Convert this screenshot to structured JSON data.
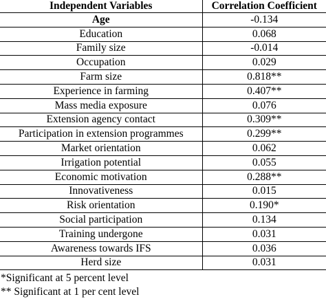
{
  "table": {
    "headers": [
      "Independent Variables",
      "Correlation Coefficient"
    ],
    "rows": [
      {
        "variable": "Age",
        "coefficient": "-0.134",
        "bold": true
      },
      {
        "variable": "Education",
        "coefficient": "0.068"
      },
      {
        "variable": "Family size",
        "coefficient": "-0.014"
      },
      {
        "variable": "Occupation",
        "coefficient": "0.029"
      },
      {
        "variable": "Farm size",
        "coefficient": "0.818**"
      },
      {
        "variable": "Experience in farming",
        "coefficient": "0.407**"
      },
      {
        "variable": "Mass media exposure",
        "coefficient": "0.076"
      },
      {
        "variable": "Extension agency contact",
        "coefficient": "0.309**"
      },
      {
        "variable": "Participation in extension programmes",
        "coefficient": "0.299**"
      },
      {
        "variable": "Market orientation",
        "coefficient": "0.062"
      },
      {
        "variable": "Irrigation potential",
        "coefficient": "0.055"
      },
      {
        "variable": "Economic motivation",
        "coefficient": "0.288**"
      },
      {
        "variable": "Innovativeness",
        "coefficient": "0.015"
      },
      {
        "variable": "Risk orientation",
        "coefficient": "0.190*"
      },
      {
        "variable": "Social participation",
        "coefficient": "0.134"
      },
      {
        "variable": "Training undergone",
        "coefficient": "0.031"
      },
      {
        "variable": "Awareness towards IFS",
        "coefficient": "0.036"
      },
      {
        "variable": "Herd size",
        "coefficient": "0.031"
      }
    ]
  },
  "notes": [
    "*Significant at 5 percent level",
    "** Significant at 1 per cent level"
  ]
}
